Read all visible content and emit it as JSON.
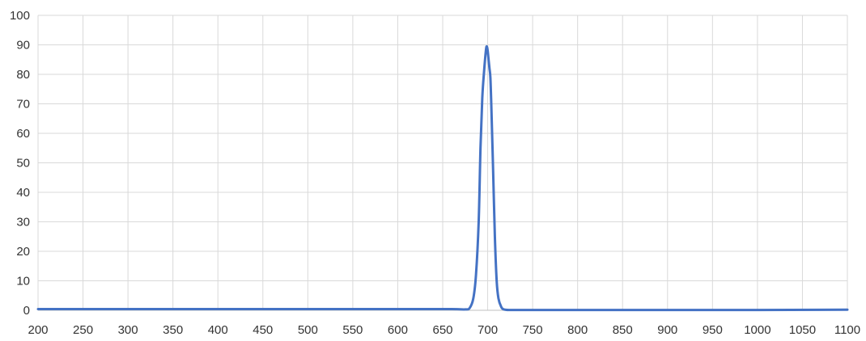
{
  "chart_data": {
    "type": "line",
    "title": "",
    "xlabel": "",
    "ylabel": "",
    "xlim": [
      200,
      1100
    ],
    "ylim": [
      0,
      100
    ],
    "x_ticks": [
      200,
      250,
      300,
      350,
      400,
      450,
      500,
      550,
      600,
      650,
      700,
      750,
      800,
      850,
      900,
      950,
      1000,
      1050,
      1100
    ],
    "y_ticks": [
      0,
      10,
      20,
      30,
      40,
      50,
      60,
      70,
      80,
      90,
      100
    ],
    "grid": true,
    "legend": "none",
    "series": [
      {
        "color": "#4472C4",
        "x": [
          200,
          300,
          400,
          500,
          600,
          660,
          675,
          680,
          684,
          687,
          690,
          692,
          694,
          696,
          698,
          699,
          700,
          701,
          702,
          703,
          704,
          706,
          708,
          710,
          712,
          715,
          718,
          725,
          750,
          800,
          900,
          1000,
          1100
        ],
        "y": [
          0.4,
          0.4,
          0.4,
          0.4,
          0.4,
          0.4,
          0.3,
          0.8,
          4,
          12,
          30,
          55,
          72,
          81,
          88,
          89.5,
          88,
          85,
          82,
          79,
          70,
          48,
          25,
          10,
          4,
          1.2,
          0.3,
          0.1,
          0.1,
          0.1,
          0.1,
          0.1,
          0.2
        ]
      }
    ]
  }
}
